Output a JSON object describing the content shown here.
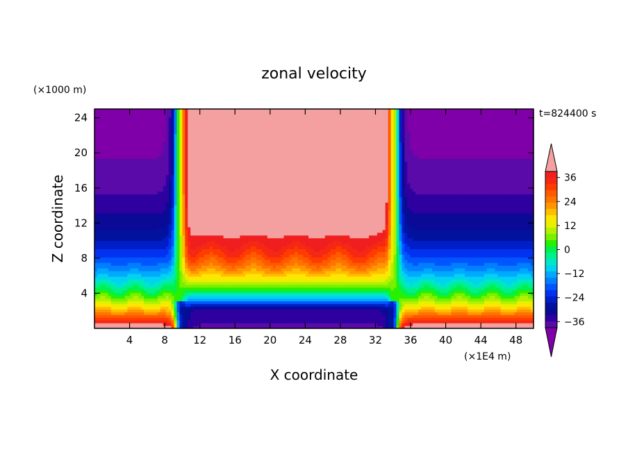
{
  "chart_data": {
    "type": "heatmap",
    "title": "zonal velocity",
    "xlabel": "X coordinate",
    "ylabel": "Z coordinate",
    "x_unit": "(×1E4 m)",
    "y_unit": "(×1000 m)",
    "time_label": "t=824400 s",
    "xlim": [
      0,
      50
    ],
    "ylim": [
      0,
      25
    ],
    "x_ticks": [
      4,
      8,
      12,
      16,
      20,
      24,
      28,
      32,
      36,
      40,
      44,
      48
    ],
    "y_ticks": [
      4,
      8,
      12,
      16,
      20,
      24
    ],
    "colorbar": {
      "levels": [
        -42,
        -39,
        -36,
        -33,
        -30,
        -27,
        -24,
        -21,
        -18,
        -15,
        -12,
        -9,
        -6,
        -3,
        0,
        3,
        6,
        9,
        12,
        15,
        18,
        21,
        24,
        27,
        30,
        33,
        36,
        39,
        42
      ],
      "tick_labels": [
        "36",
        "24",
        "12",
        "0",
        "−12",
        "−24",
        "−36"
      ],
      "tick_values": [
        36,
        24,
        12,
        0,
        -12,
        -24,
        -36
      ],
      "extend": "both"
    },
    "colors": [
      "#7f00a8",
      "#5a0aa8",
      "#2e00a0",
      "#0a0a96",
      "#00129e",
      "#001ec8",
      "#0032f0",
      "#0055ff",
      "#0080ff",
      "#00a8ff",
      "#00d2f0",
      "#00e6c8",
      "#00f08c",
      "#00f050",
      "#28f000",
      "#78f000",
      "#b4f000",
      "#e6f000",
      "#ffe600",
      "#ffbe00",
      "#ff9600",
      "#ff7300",
      "#ff5a00",
      "#ff3c00",
      "#f52814",
      "#f01e1e",
      "#f5a0a0"
    ],
    "description_values": {
      "x_samples": [
        0,
        2,
        4,
        6,
        8,
        9,
        9.5,
        10,
        11,
        12,
        14,
        16,
        18,
        20,
        22,
        24,
        26,
        28,
        30,
        32,
        33,
        33.5,
        34,
        35,
        36,
        38,
        40,
        42,
        44,
        46,
        48,
        50
      ],
      "z_samples": [
        0,
        1,
        2,
        3,
        4,
        5,
        6,
        7,
        8,
        9,
        10,
        11,
        12,
        13,
        14,
        16,
        18,
        20,
        22,
        25
      ]
    }
  }
}
